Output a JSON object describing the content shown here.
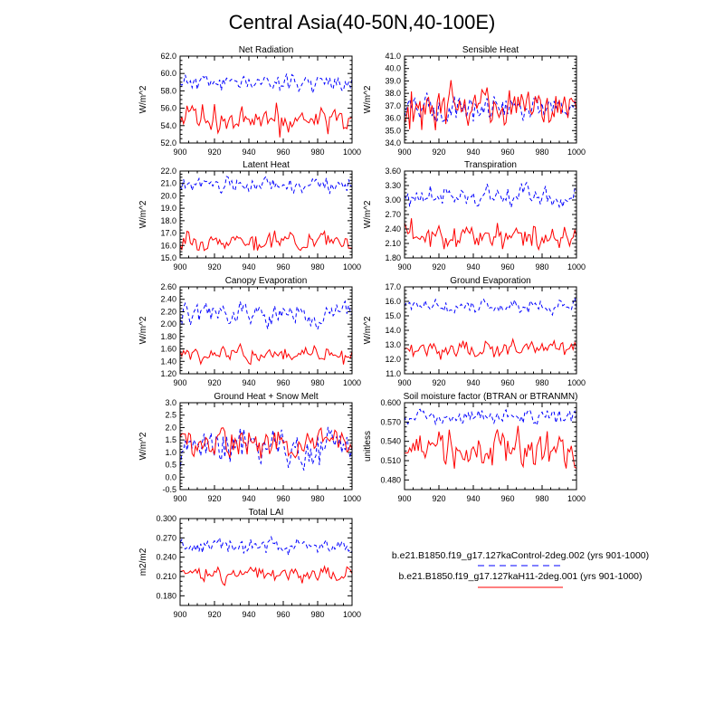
{
  "figure_title": "Central Asia(40-50N,40-100E)",
  "colors": {
    "control": "#0000ff",
    "experiment": "#ff0000",
    "axis": "#000000"
  },
  "legend": [
    {
      "label": "b.e21.B1850.f19_g17.127kaControl-2deg.002 (yrs 901-1000)",
      "color": "#0000ff",
      "style": "dashed"
    },
    {
      "label": "b.e21.B1850.f19_g17.127kaH11-2deg.001 (yrs 901-1000)",
      "color": "#ff0000",
      "style": "solid"
    }
  ],
  "chart_data": [
    {
      "type": "line",
      "title": "Net Radiation",
      "ylabel": "W/m^2",
      "xlim": [
        900,
        1000
      ],
      "ylim": [
        52.0,
        62.0
      ],
      "xticks": [
        "900",
        "920",
        "940",
        "960",
        "980",
        "1000"
      ],
      "yticks": [
        "52.0",
        "54.0",
        "56.0",
        "58.0",
        "60.0",
        "62.0"
      ],
      "series": [
        {
          "name": "control",
          "mean": 59.0,
          "amp": 0.9,
          "seed": 11
        },
        {
          "name": "experiment",
          "mean": 54.8,
          "amp": 1.6,
          "seed": 12
        }
      ]
    },
    {
      "type": "line",
      "title": "Sensible Heat",
      "ylabel": "W/m^2",
      "xlim": [
        900,
        1000
      ],
      "ylim": [
        34.0,
        41.0
      ],
      "xticks": [
        "900",
        "920",
        "940",
        "960",
        "980",
        "1000"
      ],
      "yticks": [
        "34.0",
        "35.0",
        "36.0",
        "37.0",
        "38.0",
        "39.0",
        "40.0",
        "41.0"
      ],
      "series": [
        {
          "name": "control",
          "mean": 36.8,
          "amp": 0.9,
          "seed": 21
        },
        {
          "name": "experiment",
          "mean": 37.0,
          "amp": 1.5,
          "seed": 22
        }
      ]
    },
    {
      "type": "line",
      "title": "Latent Heat",
      "ylabel": "W/m^2",
      "xlim": [
        900,
        1000
      ],
      "ylim": [
        15.0,
        22.0
      ],
      "xticks": [
        "900",
        "920",
        "940",
        "960",
        "980",
        "1000"
      ],
      "yticks": [
        "15.0",
        "16.0",
        "17.0",
        "18.0",
        "19.0",
        "20.0",
        "21.0",
        "22.0"
      ],
      "series": [
        {
          "name": "control",
          "mean": 20.9,
          "amp": 0.55,
          "seed": 31
        },
        {
          "name": "experiment",
          "mean": 16.4,
          "amp": 0.65,
          "seed": 32
        }
      ]
    },
    {
      "type": "line",
      "title": "Transpiration",
      "ylabel": "W/m^2",
      "xlim": [
        900,
        1000
      ],
      "ylim": [
        1.8,
        3.6
      ],
      "xticks": [
        "900",
        "920",
        "940",
        "960",
        "980",
        "1000"
      ],
      "yticks": [
        "1.80",
        "2.10",
        "2.40",
        "2.70",
        "3.00",
        "3.30",
        "3.60"
      ],
      "series": [
        {
          "name": "control",
          "mean": 3.05,
          "amp": 0.22,
          "seed": 41
        },
        {
          "name": "experiment",
          "mean": 2.25,
          "amp": 0.25,
          "seed": 42
        }
      ]
    },
    {
      "type": "line",
      "title": "Canopy Evaporation",
      "ylabel": "W/m^2",
      "xlim": [
        900,
        1000
      ],
      "ylim": [
        1.2,
        2.6
      ],
      "xticks": [
        "900",
        "920",
        "940",
        "960",
        "980",
        "1000"
      ],
      "yticks": [
        "1.20",
        "1.40",
        "1.60",
        "1.80",
        "2.00",
        "2.20",
        "2.40",
        "2.60"
      ],
      "series": [
        {
          "name": "control",
          "mean": 2.15,
          "amp": 0.18,
          "seed": 51
        },
        {
          "name": "experiment",
          "mean": 1.5,
          "amp": 0.14,
          "seed": 52
        }
      ]
    },
    {
      "type": "line",
      "title": "Ground Evaporation",
      "ylabel": "W/m^2",
      "xlim": [
        900,
        1000
      ],
      "ylim": [
        11.0,
        17.0
      ],
      "xticks": [
        "900",
        "920",
        "940",
        "960",
        "980",
        "1000"
      ],
      "yticks": [
        "11.0",
        "12.0",
        "13.0",
        "14.0",
        "15.0",
        "16.0",
        "17.0"
      ],
      "series": [
        {
          "name": "control",
          "mean": 15.6,
          "amp": 0.45,
          "seed": 61
        },
        {
          "name": "experiment",
          "mean": 12.7,
          "amp": 0.5,
          "seed": 62
        }
      ]
    },
    {
      "type": "line",
      "title": "Ground Heat + Snow Melt",
      "ylabel": "W/m^2",
      "xlim": [
        900,
        1000
      ],
      "ylim": [
        -0.5,
        3.0
      ],
      "xticks": [
        "900",
        "920",
        "940",
        "960",
        "980",
        "1000"
      ],
      "yticks": [
        "-0.5",
        "0.0",
        "0.5",
        "1.0",
        "1.5",
        "2.0",
        "2.5",
        "3.0"
      ],
      "series": [
        {
          "name": "control",
          "mean": 1.3,
          "amp": 0.75,
          "seed": 71
        },
        {
          "name": "experiment",
          "mean": 1.35,
          "amp": 0.6,
          "seed": 72
        }
      ]
    },
    {
      "type": "line",
      "title": "Soil moisture factor (BTRAN or BTRANMN)",
      "ylabel": "unitless",
      "xlim": [
        900,
        1000
      ],
      "ylim": [
        0.465,
        0.6
      ],
      "xticks": [
        "900",
        "920",
        "940",
        "960",
        "980",
        "1000"
      ],
      "yticks": [
        "0.480",
        "0.510",
        "0.540",
        "0.570",
        "0.600"
      ],
      "series": [
        {
          "name": "control",
          "mean": 0.578,
          "amp": 0.012,
          "seed": 81
        },
        {
          "name": "experiment",
          "mean": 0.525,
          "amp": 0.028,
          "seed": 82
        }
      ]
    },
    {
      "type": "line",
      "title": "Total LAI",
      "ylabel": "m2/m2",
      "xlim": [
        900,
        1000
      ],
      "ylim": [
        0.165,
        0.3
      ],
      "xticks": [
        "900",
        "920",
        "940",
        "960",
        "980",
        "1000"
      ],
      "yticks": [
        "0.180",
        "0.210",
        "0.240",
        "0.270",
        "0.300"
      ],
      "series": [
        {
          "name": "control",
          "mean": 0.256,
          "amp": 0.012,
          "seed": 91
        },
        {
          "name": "experiment",
          "mean": 0.214,
          "amp": 0.01,
          "seed": 92
        }
      ]
    }
  ]
}
